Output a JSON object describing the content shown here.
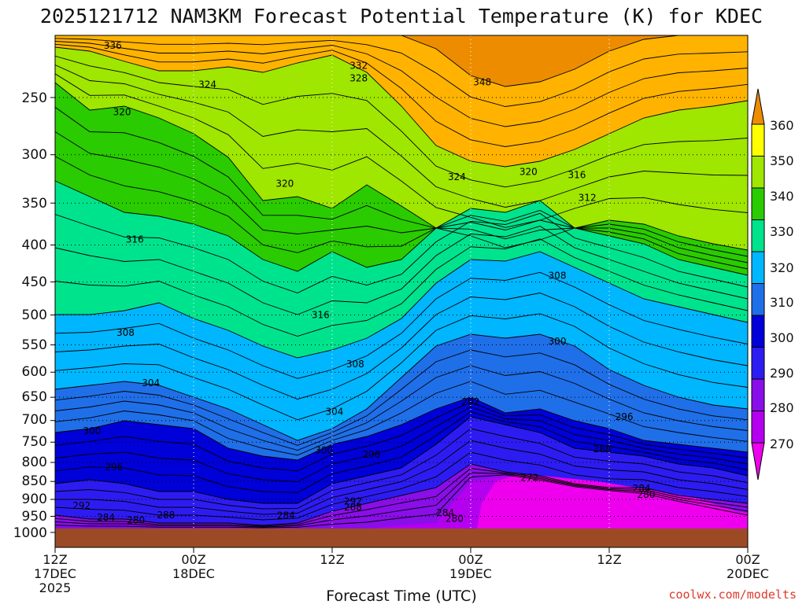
{
  "chart_data": {
    "type": "heatmap",
    "title": "2025121712 NAM3KM Forecast Potential Temperature (K) for KDEC",
    "xlabel": "Forecast Time (UTC)",
    "ylabel": "",
    "credit": "coolwx.com/modelts",
    "x_hours": [
      0,
      12,
      24,
      36,
      48,
      60
    ],
    "x_ticks": [
      {
        "line1": "12Z",
        "line2": "17DEC",
        "line3": "2025"
      },
      {
        "line1": "00Z",
        "line2": "18DEC",
        "line3": ""
      },
      {
        "line1": "12Z",
        "line2": "",
        "line3": ""
      },
      {
        "line1": "00Z",
        "line2": "19DEC",
        "line3": ""
      },
      {
        "line1": "12Z",
        "line2": "",
        "line3": ""
      },
      {
        "line1": "00Z",
        "line2": "20DEC",
        "line3": ""
      }
    ],
    "y_ticks": [
      "250",
      "300",
      "350",
      "400",
      "450",
      "500",
      "550",
      "600",
      "650",
      "700",
      "750",
      "800",
      "850",
      "900",
      "950",
      "1000"
    ],
    "y_values": [
      250,
      300,
      350,
      400,
      450,
      500,
      550,
      600,
      650,
      700,
      750,
      800,
      850,
      900,
      950,
      1000
    ],
    "ylim": [
      200,
      1030
    ],
    "colorbar": {
      "labels": [
        "270",
        "280",
        "290",
        "300",
        "310",
        "320",
        "330",
        "340",
        "350",
        "360"
      ],
      "values": [
        270,
        280,
        290,
        300,
        310,
        320,
        330,
        340,
        350,
        360
      ],
      "colors": [
        "#ee00ee",
        "#b400ef",
        "#8a0ee8",
        "#2d1cf2",
        "#0000d8",
        "#1f6fe8",
        "#00b6ff",
        "#00e38d",
        "#2acb00",
        "#9fe600",
        "#ffff00",
        "#ffb300",
        "#ee8c00"
      ]
    },
    "contour_labels": [
      {
        "text": "336",
        "t": 5.0,
        "p": 212
      },
      {
        "text": "332",
        "t": 26.3,
        "p": 226
      },
      {
        "text": "328",
        "t": 26.3,
        "p": 235
      },
      {
        "text": "324",
        "t": 13.2,
        "p": 240
      },
      {
        "text": "348",
        "t": 37.0,
        "p": 238
      },
      {
        "text": "320",
        "t": 5.8,
        "p": 262
      },
      {
        "text": "320",
        "t": 19.9,
        "p": 329
      },
      {
        "text": "324",
        "t": 34.8,
        "p": 322
      },
      {
        "text": "320",
        "t": 41.0,
        "p": 317
      },
      {
        "text": "316",
        "t": 45.2,
        "p": 320
      },
      {
        "text": "312",
        "t": 46.1,
        "p": 344
      },
      {
        "text": "316",
        "t": 6.9,
        "p": 393
      },
      {
        "text": "316",
        "t": 23.0,
        "p": 500
      },
      {
        "text": "308",
        "t": 43.5,
        "p": 441
      },
      {
        "text": "308",
        "t": 6.1,
        "p": 529
      },
      {
        "text": "308",
        "t": 26.0,
        "p": 585
      },
      {
        "text": "300",
        "t": 43.5,
        "p": 544
      },
      {
        "text": "304",
        "t": 8.3,
        "p": 621
      },
      {
        "text": "304",
        "t": 24.2,
        "p": 681
      },
      {
        "text": "292",
        "t": 36.0,
        "p": 660
      },
      {
        "text": "296",
        "t": 49.3,
        "p": 692
      },
      {
        "text": "300",
        "t": 3.2,
        "p": 724
      },
      {
        "text": "300",
        "t": 23.3,
        "p": 770
      },
      {
        "text": "296",
        "t": 27.4,
        "p": 780
      },
      {
        "text": "288",
        "t": 47.4,
        "p": 767
      },
      {
        "text": "296",
        "t": 5.1,
        "p": 812
      },
      {
        "text": "272",
        "t": 41.1,
        "p": 840
      },
      {
        "text": "284",
        "t": 50.8,
        "p": 869
      },
      {
        "text": "280",
        "t": 51.2,
        "p": 887
      },
      {
        "text": "292",
        "t": 2.3,
        "p": 918
      },
      {
        "text": "292",
        "t": 25.8,
        "p": 906
      },
      {
        "text": "288",
        "t": 25.8,
        "p": 923
      },
      {
        "text": "284",
        "t": 33.8,
        "p": 939
      },
      {
        "text": "284",
        "t": 4.4,
        "p": 954
      },
      {
        "text": "288",
        "t": 9.6,
        "p": 946
      },
      {
        "text": "280",
        "t": 7.0,
        "p": 962
      },
      {
        "text": "284",
        "t": 20.0,
        "p": 947
      },
      {
        "text": "280",
        "t": 34.6,
        "p": 957
      }
    ]
  }
}
